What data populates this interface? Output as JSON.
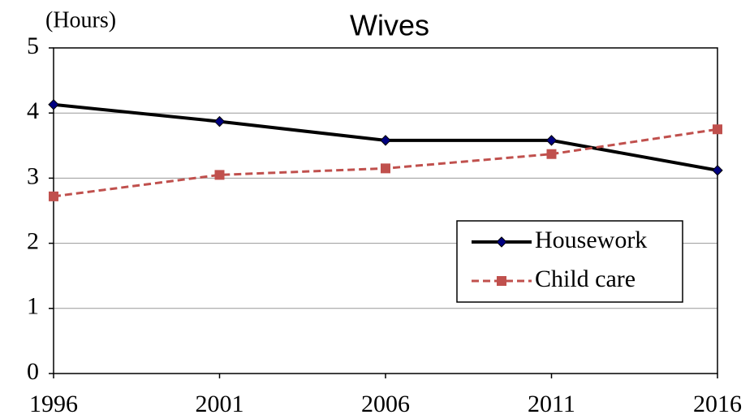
{
  "chart_data": {
    "type": "line",
    "title": "Wives",
    "y_label": "(Hours)",
    "x": [
      1996,
      2001,
      2006,
      2011,
      2016
    ],
    "xlim": [
      1996,
      2016
    ],
    "xticks": [
      1996,
      2001,
      2006,
      2011,
      2016
    ],
    "ylim": [
      0,
      5
    ],
    "yticks": [
      0,
      1,
      2,
      3,
      4,
      5
    ],
    "grid": true,
    "legend": "right",
    "series": [
      {
        "name": "Housework",
        "color": "#000000",
        "marker": "diamond",
        "marker_color": "#000080",
        "dash": false,
        "values": [
          4.13,
          3.87,
          3.58,
          3.58,
          3.12
        ]
      },
      {
        "name": "Child care",
        "color": "#c0504d",
        "marker": "square",
        "marker_color": "#c0504d",
        "dash": true,
        "values": [
          2.72,
          3.05,
          3.15,
          3.37,
          3.75
        ]
      }
    ]
  }
}
